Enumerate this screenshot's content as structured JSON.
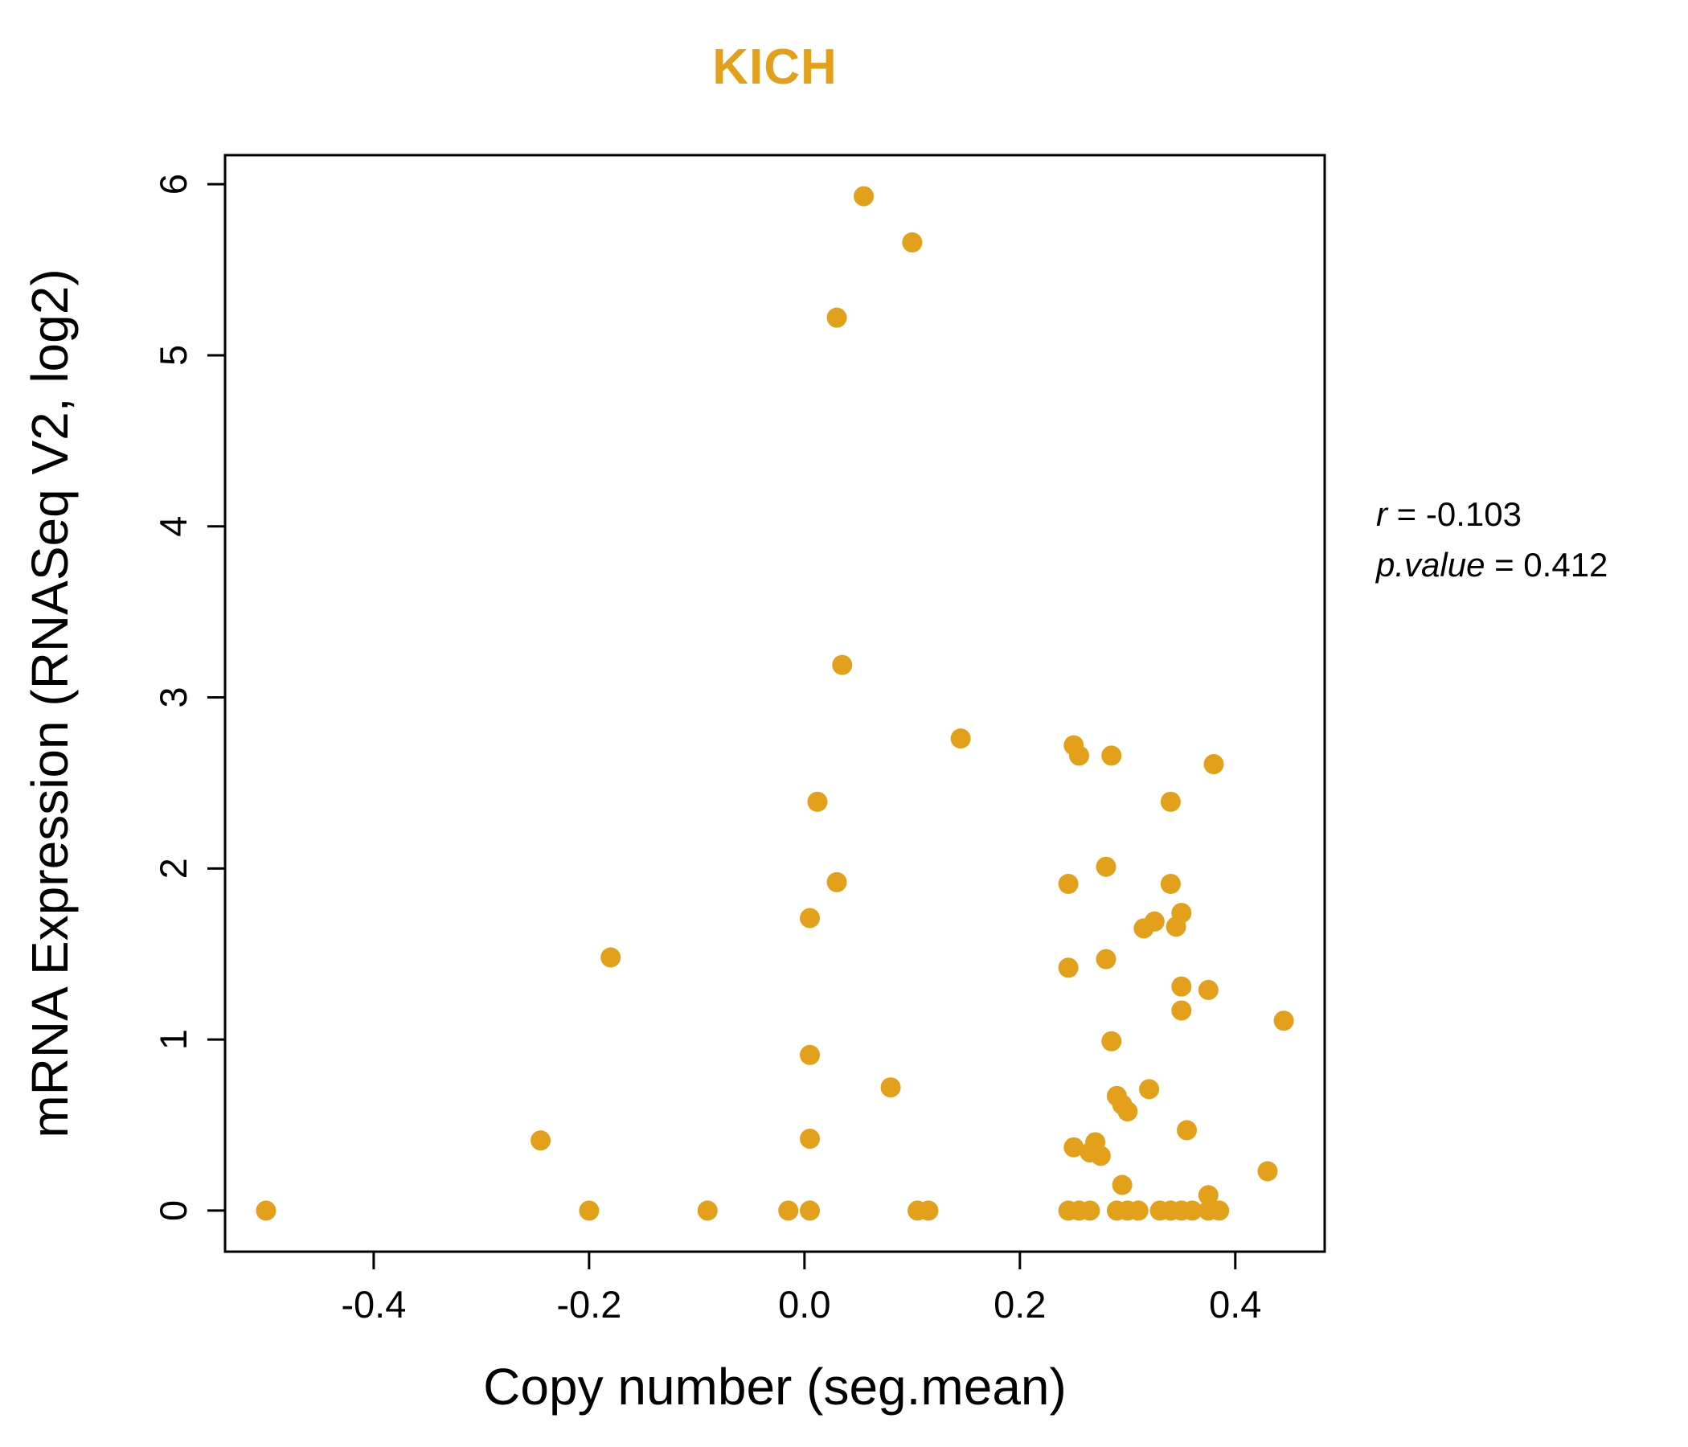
{
  "colors": {
    "point": "#E3A11B",
    "title": "#E3A11B",
    "axis": "#000000"
  },
  "annotation": {
    "r_label": "r",
    "r_value": " = -0.103",
    "p_label": "p.value",
    "p_value": " = 0.412"
  },
  "chart_data": {
    "type": "scatter",
    "title": "KICH",
    "xlabel": "Copy number (seg.mean)",
    "ylabel": "mRNA Expression (RNASeq V2, log2)",
    "xlim": [
      -0.538,
      0.483
    ],
    "ylim": [
      -0.24,
      6.17
    ],
    "x_ticks": [
      -0.4,
      -0.2,
      0.0,
      0.2,
      0.4
    ],
    "x_tick_labels": [
      "-0.4",
      "-0.2",
      "0.0",
      "0.2",
      "0.4"
    ],
    "y_ticks": [
      0,
      1,
      2,
      3,
      4,
      5,
      6
    ],
    "y_tick_labels": [
      "0",
      "1",
      "2",
      "3",
      "4",
      "5",
      "6"
    ],
    "grid": false,
    "legend": false,
    "stats": {
      "r": -0.103,
      "p_value": 0.412
    },
    "points": [
      [
        0.055,
        5.93
      ],
      [
        0.1,
        5.66
      ],
      [
        0.03,
        5.22
      ],
      [
        0.035,
        3.19
      ],
      [
        0.145,
        2.76
      ],
      [
        0.25,
        2.72
      ],
      [
        0.255,
        2.66
      ],
      [
        0.285,
        2.66
      ],
      [
        0.38,
        2.61
      ],
      [
        0.012,
        2.39
      ],
      [
        0.34,
        2.39
      ],
      [
        0.28,
        2.01
      ],
      [
        0.03,
        1.92
      ],
      [
        0.245,
        1.91
      ],
      [
        0.34,
        1.91
      ],
      [
        0.35,
        1.74
      ],
      [
        0.005,
        1.71
      ],
      [
        0.325,
        1.69
      ],
      [
        0.315,
        1.65
      ],
      [
        0.345,
        1.66
      ],
      [
        -0.18,
        1.48
      ],
      [
        0.28,
        1.47
      ],
      [
        0.245,
        1.42
      ],
      [
        0.35,
        1.31
      ],
      [
        0.375,
        1.29
      ],
      [
        0.35,
        1.17
      ],
      [
        0.445,
        1.11
      ],
      [
        0.285,
        0.99
      ],
      [
        0.005,
        0.91
      ],
      [
        0.08,
        0.72
      ],
      [
        0.32,
        0.71
      ],
      [
        0.29,
        0.67
      ],
      [
        0.295,
        0.62
      ],
      [
        0.3,
        0.58
      ],
      [
        0.355,
        0.47
      ],
      [
        -0.245,
        0.41
      ],
      [
        0.005,
        0.42
      ],
      [
        0.27,
        0.4
      ],
      [
        0.25,
        0.37
      ],
      [
        0.265,
        0.34
      ],
      [
        0.275,
        0.32
      ],
      [
        0.43,
        0.23
      ],
      [
        0.295,
        0.15
      ],
      [
        0.375,
        0.09
      ],
      [
        -0.5,
        0.0
      ],
      [
        -0.2,
        0.0
      ],
      [
        -0.09,
        0.0
      ],
      [
        -0.015,
        0.0
      ],
      [
        0.005,
        0.0
      ],
      [
        0.105,
        0.0
      ],
      [
        0.115,
        0.0
      ],
      [
        0.245,
        0.0
      ],
      [
        0.255,
        0.0
      ],
      [
        0.265,
        0.0
      ],
      [
        0.29,
        0.0
      ],
      [
        0.3,
        0.0
      ],
      [
        0.31,
        0.0
      ],
      [
        0.33,
        0.0
      ],
      [
        0.34,
        0.0
      ],
      [
        0.35,
        0.0
      ],
      [
        0.36,
        0.0
      ],
      [
        0.375,
        0.0
      ],
      [
        0.385,
        0.0
      ]
    ]
  }
}
